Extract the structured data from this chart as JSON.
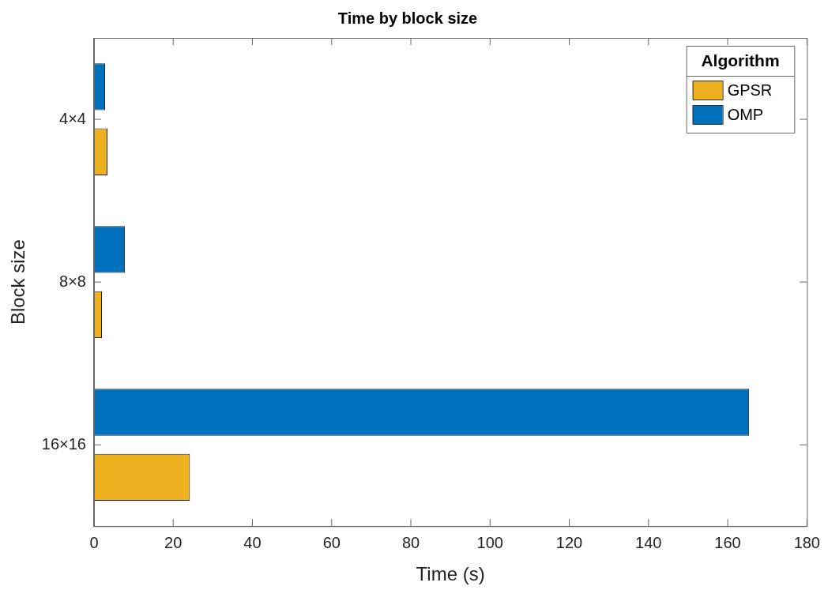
{
  "chart_data": {
    "type": "bar",
    "orientation": "horizontal",
    "title": "Time by block size",
    "xlabel": "Time (s)",
    "ylabel": "Block size",
    "legend_title": "Algorithm",
    "legend": "top right",
    "grid": false,
    "categories": [
      "4×4",
      "8×8",
      "16×16"
    ],
    "series": [
      {
        "name": "GPSR",
        "color": "#edb120",
        "values": [
          3.4,
          2.0,
          24.2
        ]
      },
      {
        "name": "OMP",
        "color": "#0072bd",
        "values": [
          2.8,
          7.8,
          165.4
        ]
      }
    ],
    "xlim": [
      0,
      180
    ],
    "xticks": [
      0,
      20,
      40,
      60,
      80,
      100,
      120,
      140,
      160,
      180
    ]
  }
}
